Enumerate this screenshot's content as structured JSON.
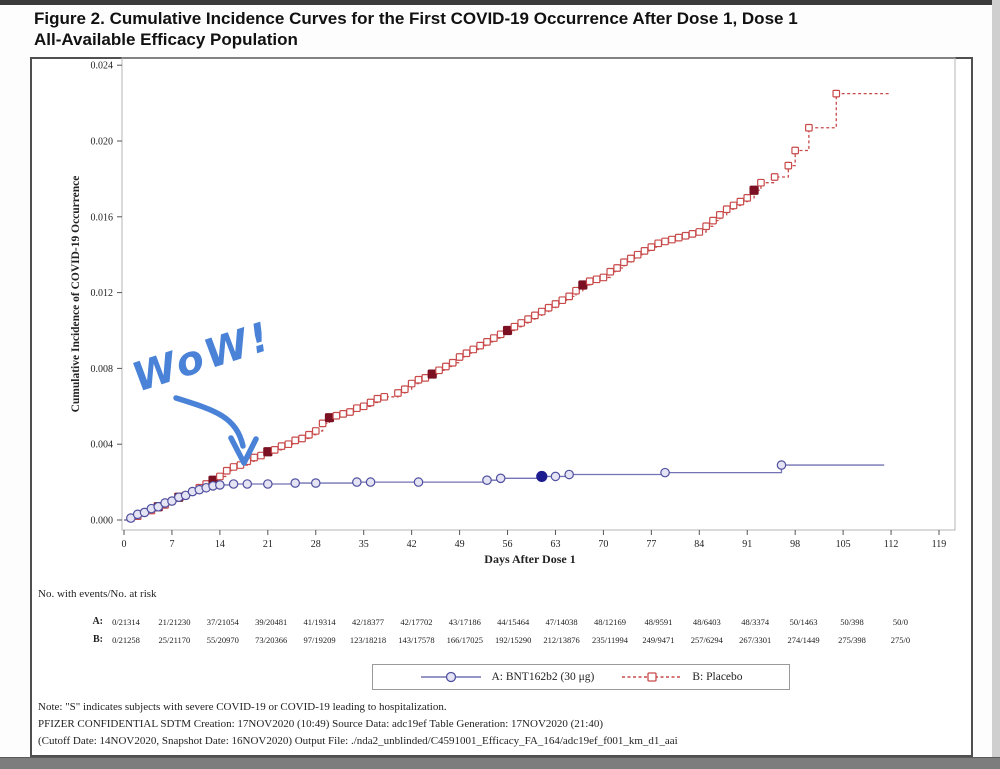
{
  "page": {
    "title_line1": "Figure 2. Cumulative Incidence Curves for the First COVID-19 Occurrence After Dose 1, Dose 1",
    "title_line2": "All-Available Efficacy Population"
  },
  "chart_data": {
    "type": "line",
    "subtype": "kaplan-meier-step",
    "xlabel": "Days After Dose 1",
    "ylabel": "Cumulative Incidence of COVID-19 Occurrence",
    "xlim": [
      0,
      119
    ],
    "ylim": [
      0,
      0.024
    ],
    "x_ticks": [
      0,
      7,
      14,
      21,
      28,
      35,
      42,
      49,
      56,
      63,
      70,
      77,
      84,
      91,
      98,
      105,
      112,
      119
    ],
    "y_tick_labels": [
      "0.000",
      "0.004",
      "0.008",
      "0.012",
      "0.016",
      "0.020",
      "0.024"
    ],
    "grid": false,
    "legend_position": "bottom",
    "series": [
      {
        "id": "placebo",
        "name": "B: Placebo",
        "color": "#c84a4a",
        "severe_color": "#7a1022",
        "marker": "square",
        "line_style": "dashed",
        "severe_days": [
          5,
          8,
          13,
          21,
          30,
          45,
          56,
          67,
          92
        ],
        "points": [
          [
            0,
            0.0
          ],
          [
            1,
            0.0001
          ],
          [
            2,
            0.0002
          ],
          [
            3,
            0.0004
          ],
          [
            4,
            0.0005
          ],
          [
            5,
            0.0007
          ],
          [
            6,
            0.0008
          ],
          [
            7,
            0.001
          ],
          [
            8,
            0.0012
          ],
          [
            9,
            0.0013
          ],
          [
            10,
            0.0015
          ],
          [
            11,
            0.0017
          ],
          [
            12,
            0.0019
          ],
          [
            13,
            0.0021
          ],
          [
            14,
            0.0023
          ],
          [
            15,
            0.0026
          ],
          [
            16,
            0.0028
          ],
          [
            17,
            0.0029
          ],
          [
            18,
            0.0031
          ],
          [
            19,
            0.0033
          ],
          [
            20,
            0.0034
          ],
          [
            21,
            0.0036
          ],
          [
            22,
            0.0037
          ],
          [
            23,
            0.0039
          ],
          [
            24,
            0.004
          ],
          [
            25,
            0.0042
          ],
          [
            26,
            0.0043
          ],
          [
            27,
            0.0045
          ],
          [
            28,
            0.0047
          ],
          [
            29,
            0.0051
          ],
          [
            30,
            0.0054
          ],
          [
            31,
            0.0055
          ],
          [
            32,
            0.0056
          ],
          [
            33,
            0.0057
          ],
          [
            34,
            0.0059
          ],
          [
            35,
            0.006
          ],
          [
            36,
            0.0062
          ],
          [
            37,
            0.0064
          ],
          [
            38,
            0.0065
          ],
          [
            40,
            0.0067
          ],
          [
            41,
            0.0069
          ],
          [
            42,
            0.0072
          ],
          [
            43,
            0.0074
          ],
          [
            44,
            0.0075
          ],
          [
            45,
            0.0077
          ],
          [
            46,
            0.0079
          ],
          [
            47,
            0.0081
          ],
          [
            48,
            0.0083
          ],
          [
            49,
            0.0086
          ],
          [
            50,
            0.0088
          ],
          [
            51,
            0.009
          ],
          [
            52,
            0.0092
          ],
          [
            53,
            0.0094
          ],
          [
            54,
            0.0096
          ],
          [
            55,
            0.0098
          ],
          [
            56,
            0.01
          ],
          [
            57,
            0.0102
          ],
          [
            58,
            0.0104
          ],
          [
            59,
            0.0106
          ],
          [
            60,
            0.0108
          ],
          [
            61,
            0.011
          ],
          [
            62,
            0.0112
          ],
          [
            63,
            0.0114
          ],
          [
            64,
            0.0116
          ],
          [
            65,
            0.0118
          ],
          [
            66,
            0.0121
          ],
          [
            67,
            0.0124
          ],
          [
            68,
            0.0126
          ],
          [
            69,
            0.0127
          ],
          [
            70,
            0.0128
          ],
          [
            71,
            0.0131
          ],
          [
            72,
            0.0133
          ],
          [
            73,
            0.0136
          ],
          [
            74,
            0.0138
          ],
          [
            75,
            0.014
          ],
          [
            76,
            0.0142
          ],
          [
            77,
            0.0144
          ],
          [
            78,
            0.0146
          ],
          [
            79,
            0.0147
          ],
          [
            80,
            0.0148
          ],
          [
            81,
            0.0149
          ],
          [
            82,
            0.015
          ],
          [
            83,
            0.0151
          ],
          [
            84,
            0.0152
          ],
          [
            85,
            0.0155
          ],
          [
            86,
            0.0158
          ],
          [
            87,
            0.0161
          ],
          [
            88,
            0.0164
          ],
          [
            89,
            0.0166
          ],
          [
            90,
            0.0168
          ],
          [
            91,
            0.017
          ],
          [
            92,
            0.0174
          ],
          [
            93,
            0.0178
          ],
          [
            95,
            0.0181
          ],
          [
            97,
            0.0187
          ],
          [
            98,
            0.0195
          ],
          [
            100,
            0.0207
          ],
          [
            104,
            0.0225
          ],
          [
            112,
            0.0225
          ]
        ]
      },
      {
        "id": "bnt162b2",
        "name": "A: BNT162b2 (30 μg)",
        "color": "#7272b4",
        "severe_color": "#1c1c8f",
        "marker": "circle",
        "line_style": "solid",
        "severe_days": [
          61
        ],
        "points": [
          [
            0,
            0.0
          ],
          [
            1,
            0.0001
          ],
          [
            2,
            0.0003
          ],
          [
            3,
            0.0004
          ],
          [
            4,
            0.0006
          ],
          [
            5,
            0.0007
          ],
          [
            6,
            0.0009
          ],
          [
            7,
            0.001
          ],
          [
            8,
            0.0012
          ],
          [
            9,
            0.0013
          ],
          [
            10,
            0.0015
          ],
          [
            11,
            0.0016
          ],
          [
            12,
            0.0017
          ],
          [
            13,
            0.0018
          ],
          [
            14,
            0.00185
          ],
          [
            16,
            0.0019
          ],
          [
            18,
            0.0019
          ],
          [
            21,
            0.0019
          ],
          [
            25,
            0.00195
          ],
          [
            28,
            0.00195
          ],
          [
            34,
            0.002
          ],
          [
            36,
            0.002
          ],
          [
            43,
            0.002
          ],
          [
            53,
            0.0021
          ],
          [
            55,
            0.0022
          ],
          [
            61,
            0.0023
          ],
          [
            63,
            0.0023
          ],
          [
            65,
            0.0024
          ],
          [
            79,
            0.0025
          ],
          [
            96,
            0.0029
          ],
          [
            111,
            0.0029
          ]
        ]
      }
    ]
  },
  "annotation": {
    "text": "WoW!",
    "color": "#4a82d8"
  },
  "risk_table": {
    "caption": "No. with events/No. at risk",
    "rows": [
      {
        "label": "A:",
        "values": [
          "0/21314",
          "21/21230",
          "37/21054",
          "39/20481",
          "41/19314",
          "42/18377",
          "42/17702",
          "43/17186",
          "44/15464",
          "47/14038",
          "48/12169",
          "48/9591",
          "48/6403",
          "48/3374",
          "50/1463",
          "50/398",
          "50/0"
        ]
      },
      {
        "label": "B:",
        "values": [
          "0/21258",
          "25/21170",
          "55/20970",
          "73/20366",
          "97/19209",
          "123/18218",
          "143/17578",
          "166/17025",
          "192/15290",
          "212/13876",
          "235/11994",
          "249/9471",
          "257/6294",
          "267/3301",
          "274/1449",
          "275/398",
          "275/0"
        ]
      }
    ]
  },
  "notes": [
    "Note: \"S\" indicates subjects with severe COVID-19 or COVID-19 leading to hospitalization.",
    "PFIZER CONFIDENTIAL SDTM Creation: 17NOV2020 (10:49) Source Data: adc19ef Table Generation: 17NOV2020 (21:40)",
    "(Cutoff Date: 14NOV2020, Snapshot Date: 16NOV2020) Output File: ./nda2_unblinded/C4591001_Efficacy_FA_164/adc19ef_f001_km_d1_aai"
  ]
}
